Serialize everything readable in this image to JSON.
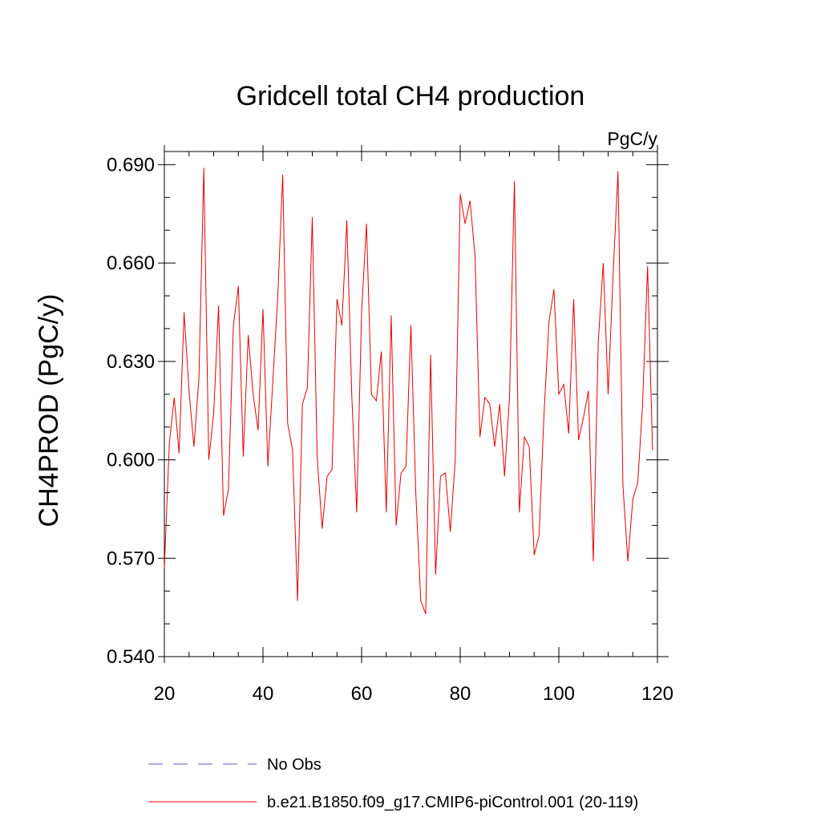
{
  "chart_data": {
    "type": "line",
    "title": "Gridcell total CH4 production",
    "units_label": "PgC/y",
    "ylabel": "CH4PROD  (PgC/y)",
    "xlabel": "",
    "xlim": [
      20,
      120
    ],
    "ylim": [
      0.54,
      0.694
    ],
    "x_ticks": [
      20,
      40,
      60,
      80,
      100,
      120
    ],
    "x_tick_labels": [
      "20",
      "40",
      "60",
      "80",
      "100",
      "120"
    ],
    "y_ticks": [
      0.54,
      0.57,
      0.6,
      0.63,
      0.66,
      0.69
    ],
    "y_tick_labels": [
      "0.540",
      "0.570",
      "0.600",
      "0.630",
      "0.660",
      "0.690"
    ],
    "grid": false,
    "legend_position": "bottom",
    "legend": [
      {
        "label": "No Obs",
        "color": "#6a5acd",
        "style": "dashed"
      },
      {
        "label": "b.e21.B1850.f09_g17.CMIP6-piControl.001 (20-119)",
        "color": "#e60000",
        "style": "solid"
      }
    ],
    "series": [
      {
        "color": "#e60000",
        "x": [
          20,
          21,
          22,
          23,
          24,
          25,
          26,
          27,
          28,
          29,
          30,
          31,
          32,
          33,
          34,
          35,
          36,
          37,
          38,
          39,
          40,
          41,
          42,
          43,
          44,
          45,
          46,
          47,
          48,
          49,
          50,
          51,
          52,
          53,
          54,
          55,
          56,
          57,
          58,
          59,
          60,
          61,
          62,
          63,
          64,
          65,
          66,
          67,
          68,
          69,
          70,
          71,
          72,
          73,
          74,
          75,
          76,
          77,
          78,
          79,
          80,
          81,
          82,
          83,
          84,
          85,
          86,
          87,
          88,
          89,
          90,
          91,
          92,
          93,
          94,
          95,
          96,
          97,
          98,
          99,
          100,
          101,
          102,
          103,
          104,
          105,
          106,
          107,
          108,
          109,
          110,
          111,
          112,
          113,
          114,
          115,
          116,
          117,
          118,
          119
        ],
        "values": [
          0.567,
          0.605,
          0.619,
          0.602,
          0.645,
          0.621,
          0.604,
          0.625,
          0.689,
          0.6,
          0.614,
          0.647,
          0.583,
          0.591,
          0.641,
          0.653,
          0.601,
          0.638,
          0.62,
          0.609,
          0.646,
          0.598,
          0.624,
          0.65,
          0.687,
          0.611,
          0.603,
          0.557,
          0.617,
          0.622,
          0.674,
          0.601,
          0.579,
          0.595,
          0.597,
          0.649,
          0.641,
          0.673,
          0.62,
          0.584,
          0.645,
          0.672,
          0.62,
          0.618,
          0.633,
          0.584,
          0.644,
          0.58,
          0.596,
          0.598,
          0.641,
          0.59,
          0.557,
          0.553,
          0.632,
          0.565,
          0.595,
          0.596,
          0.578,
          0.6,
          0.681,
          0.672,
          0.679,
          0.662,
          0.607,
          0.619,
          0.617,
          0.604,
          0.617,
          0.595,
          0.619,
          0.685,
          0.584,
          0.607,
          0.604,
          0.571,
          0.577,
          0.614,
          0.642,
          0.652,
          0.62,
          0.623,
          0.608,
          0.649,
          0.606,
          0.613,
          0.621,
          0.569,
          0.636,
          0.66,
          0.62,
          0.656,
          0.688,
          0.592,
          0.569,
          0.588,
          0.593,
          0.617,
          0.659,
          0.603
        ]
      }
    ]
  }
}
